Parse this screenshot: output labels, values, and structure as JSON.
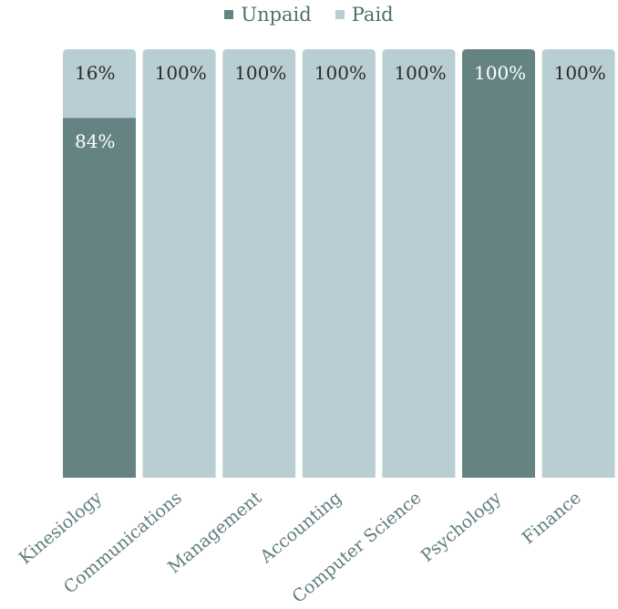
{
  "chart_data": {
    "type": "bar",
    "stacked": true,
    "normalized": true,
    "categories": [
      "Kinesiology",
      "Communications",
      "Management",
      "Accounting",
      "Computer Science",
      "Psychology",
      "Finance"
    ],
    "series": [
      {
        "name": "Unpaid",
        "color": "#658383",
        "values": [
          84,
          0,
          0,
          0,
          0,
          100,
          0
        ]
      },
      {
        "name": "Paid",
        "color": "#b8ced3",
        "values": [
          16,
          100,
          100,
          100,
          100,
          0,
          100
        ]
      }
    ],
    "value_labels": [
      {
        "category": "Kinesiology",
        "series": "Paid",
        "text": "16%"
      },
      {
        "category": "Kinesiology",
        "series": "Unpaid",
        "text": "84%"
      },
      {
        "category": "Communications",
        "series": "Paid",
        "text": "100%"
      },
      {
        "category": "Management",
        "series": "Paid",
        "text": "100%"
      },
      {
        "category": "Accounting",
        "series": "Paid",
        "text": "100%"
      },
      {
        "category": "Computer Science",
        "series": "Paid",
        "text": "100%"
      },
      {
        "category": "Psychology",
        "series": "Unpaid",
        "text": "100%"
      },
      {
        "category": "Finance",
        "series": "Paid",
        "text": "100%"
      }
    ],
    "ylim": [
      0,
      100
    ],
    "legend_position": "top-center",
    "grid": false
  }
}
